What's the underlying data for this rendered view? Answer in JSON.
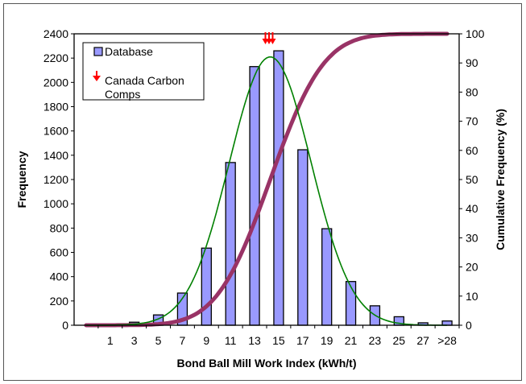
{
  "chart_data": {
    "type": "bar",
    "title": "",
    "xlabel": "Bond Ball Mill Work Index (kWh/t)",
    "ylabel": "Frequency",
    "y2label": "Cumulative Frequency (%)",
    "categories": [
      "",
      "1",
      "3",
      "5",
      "7",
      "9",
      "11",
      "13",
      "15",
      "17",
      "19",
      "21",
      "23",
      "25",
      "27",
      ">28"
    ],
    "category_values": [
      -1,
      1,
      3,
      5,
      7,
      9,
      11,
      13,
      15,
      17,
      19,
      21,
      23,
      25,
      27,
      29
    ],
    "series": [
      {
        "name": "Database",
        "type": "bar",
        "color": "#9999ff",
        "values": [
          0,
          0,
          25,
          85,
          265,
          635,
          1340,
          2130,
          2260,
          1445,
          795,
          360,
          160,
          70,
          20,
          35
        ]
      }
    ],
    "fitted_normal": {
      "type": "line",
      "color": "#008000",
      "mean": 14.3,
      "sd": 3.4,
      "peak": 2210
    },
    "cumulative": {
      "type": "line",
      "axis": "right",
      "color": "#993366",
      "mean": 14.3,
      "sd": 3.5,
      "range": [
        0,
        100
      ]
    },
    "markers": {
      "name": "Canada Carbon Comps",
      "color": "#ff0000",
      "x_values": [
        13.9,
        14.2,
        14.5
      ]
    },
    "ylim": [
      0,
      2400
    ],
    "y2lim": [
      0,
      100
    ],
    "yticks": [
      "0",
      "200",
      "400",
      "600",
      "800",
      "1000",
      "1200",
      "1400",
      "1600",
      "1800",
      "2000",
      "2200",
      "2400"
    ],
    "y2ticks": [
      "0",
      "10",
      "20",
      "30",
      "40",
      "50",
      "60",
      "70",
      "80",
      "90",
      "100"
    ],
    "legend": {
      "placement": "top-left",
      "entries": [
        "Database",
        "Canada Carbon Comps"
      ]
    },
    "grid": false
  }
}
